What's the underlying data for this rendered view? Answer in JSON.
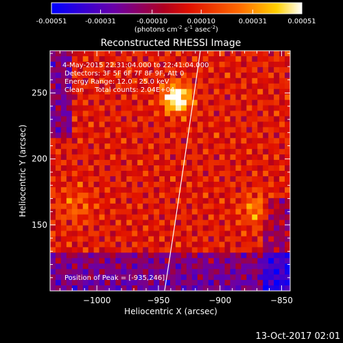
{
  "colorbar": {
    "ticks": [
      "-0.00051",
      "-0.00031",
      "-0.00010",
      "0.00010",
      "0.00031",
      "0.00051"
    ],
    "tick_values": [
      -0.00051,
      -0.00031,
      -0.0001,
      0.0001,
      0.00031,
      0.00051
    ],
    "range": [
      -0.00051,
      0.00051
    ],
    "units_line": "(photons cm",
    "units_sup1": "-2",
    "units_mid": " s",
    "units_sup2": "-1",
    "units_end": " asec",
    "units_sup3": "-2",
    "units_close": ")"
  },
  "chart_data": {
    "type": "heatmap",
    "title": "Reconstructed RHESSI Image",
    "xlabel": "Heliocentric X (arcsec)",
    "ylabel": "Heliocentric Y (arcsec)",
    "xlim": [
      -1038,
      -843
    ],
    "ylim": [
      100,
      282
    ],
    "xticks": [
      -1000,
      -950,
      -900,
      -850
    ],
    "xtick_labels": [
      "−1000",
      "−950",
      "−900",
      "−850"
    ],
    "yticks": [
      150,
      200,
      250
    ],
    "ytick_labels": [
      "150",
      "200",
      "250"
    ],
    "annotations": [
      "4-May-2015 22:31:04.000 to 22:41:04.000",
      "Detectors: 3F 5F 6F 7F 8F 9F, Att 0",
      "Energy Range: 12.0 - 25.0 keV",
      "Clean     Total counts: 2.04E+04"
    ],
    "peak_label": "Position of Peak = [-935,246]",
    "peak": {
      "x": -935,
      "y": 246
    },
    "limb_curve": [
      {
        "x": -945,
        "y": 100
      },
      {
        "x": -930,
        "y": 190
      },
      {
        "x": -916,
        "y": 282
      }
    ],
    "colormap": "hot-blue diverging",
    "colors": {
      "neg": "#0000ff",
      "mid": "#ff0000",
      "pos": "#ffffff"
    }
  },
  "timestamp": "13-Oct-2017 02:01"
}
